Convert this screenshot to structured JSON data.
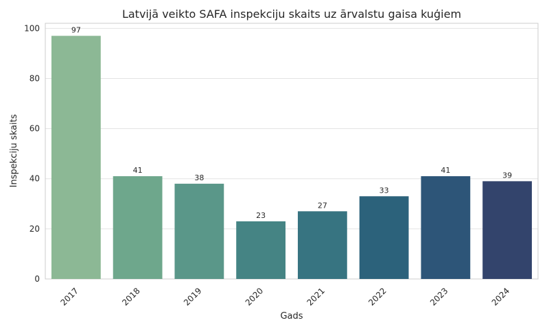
{
  "chart_data": {
    "type": "bar",
    "title": "Latvijā veikto SAFA inspekciju skaits uz ārvalstu gaisa kuģiem",
    "xlabel": "Gads",
    "ylabel": "Inspekciju skaits",
    "categories": [
      "2017",
      "2018",
      "2019",
      "2020",
      "2021",
      "2022",
      "2023",
      "2024"
    ],
    "values": [
      97,
      41,
      38,
      23,
      27,
      33,
      41,
      39
    ],
    "ylim": [
      0,
      102
    ],
    "yticks": [
      0,
      20,
      40,
      60,
      80,
      100
    ],
    "grid": true,
    "legend": "none",
    "x_tick_rotation_deg": 45,
    "bar_colors": [
      "#8cb895",
      "#6ea78c",
      "#5a9789",
      "#458484",
      "#377481",
      "#2c627b",
      "#2d5578",
      "#33446c"
    ],
    "colors": {
      "grid": "#e3e3e3",
      "spine": "#cccccc",
      "text": "#262626"
    }
  }
}
